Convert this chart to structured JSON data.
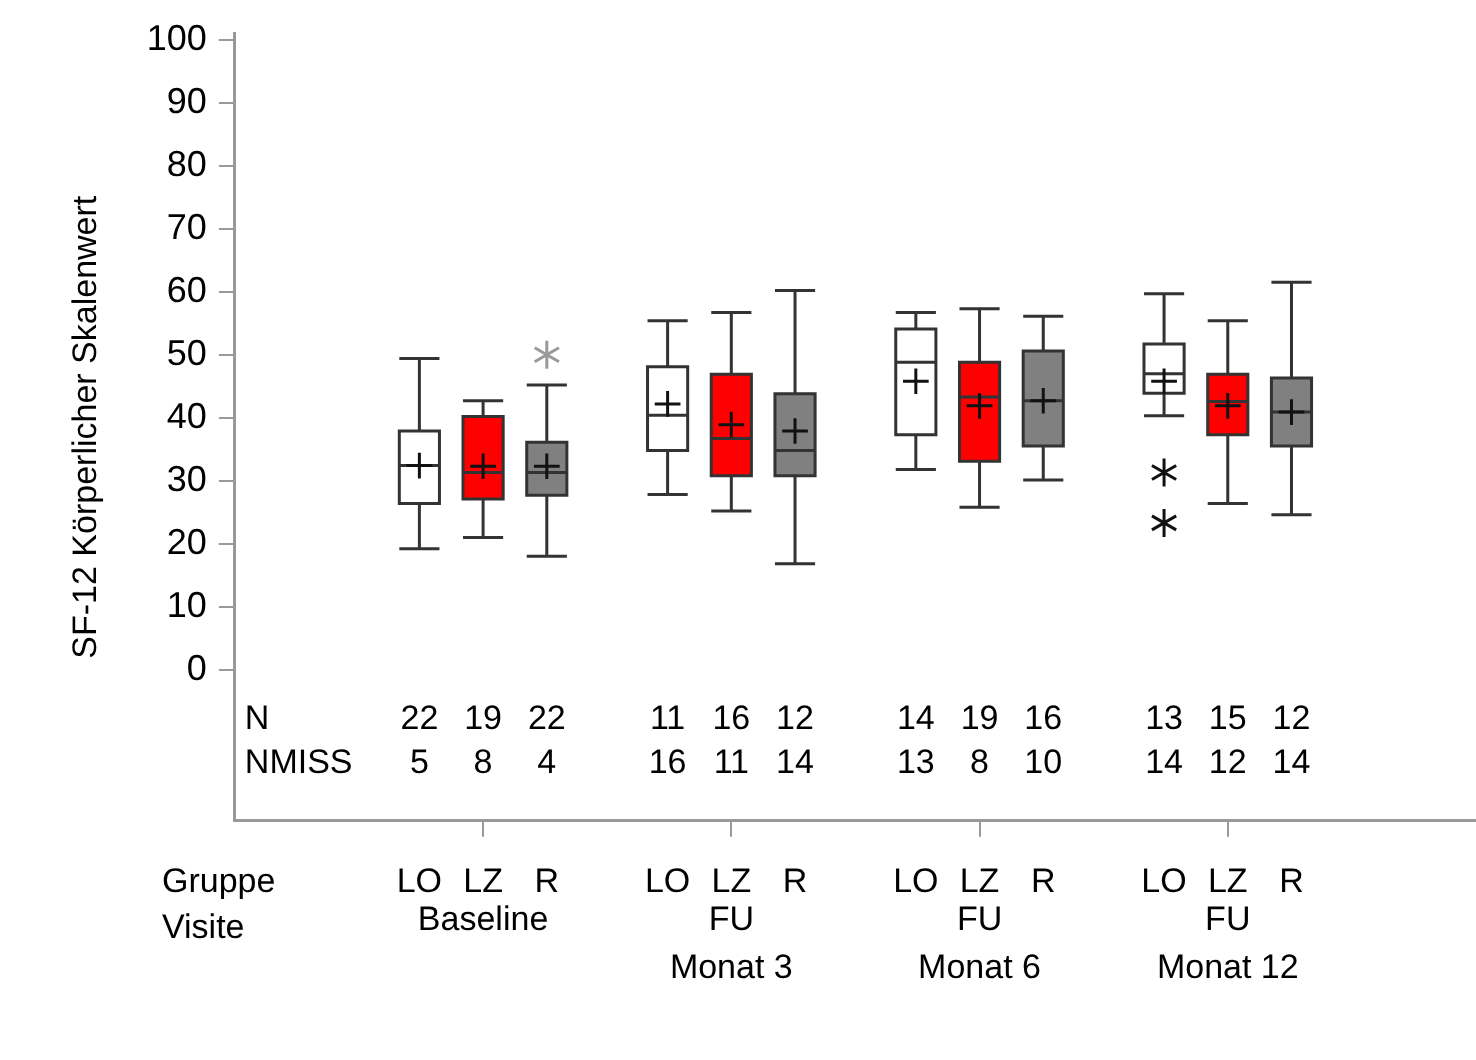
{
  "chart_data": {
    "type": "box",
    "ylabel": "SF-12 Körperlicher Skalenwert",
    "categories": [
      "Baseline",
      "FU Monat 3",
      "FU Monat 6",
      "FU Monat 12"
    ],
    "ylim": [
      -24,
      101
    ],
    "yticks": [
      0,
      10,
      20,
      30,
      40,
      50,
      60,
      70,
      80,
      90,
      100
    ],
    "grid": false,
    "legend": false,
    "marker": "cross",
    "series": [
      {
        "name": "LO",
        "color": "#ffffff",
        "boxes": [
          {
            "low": 19.2,
            "q1": 26.4,
            "median": 32.4,
            "q3": 37.9,
            "high": 49.4,
            "mean": 32.4
          },
          {
            "low": 27.8,
            "q1": 34.8,
            "median": 40.4,
            "q3": 48.1,
            "high": 55.4,
            "mean": 42.2
          },
          {
            "low": 31.8,
            "q1": 37.3,
            "median": 48.8,
            "q3": 54.1,
            "high": 56.7,
            "mean": 45.8
          },
          {
            "low": 40.3,
            "q1": 43.9,
            "median": 47,
            "q3": 51.7,
            "high": 59.7,
            "mean": 45.8,
            "outliers": [
              31.3,
              23.3
            ]
          }
        ]
      },
      {
        "name": "LZ",
        "color": "#ff0000",
        "boxes": [
          {
            "low": 21,
            "q1": 27.1,
            "median": 31.3,
            "q3": 40.2,
            "high": 42.7,
            "mean": 32.3
          },
          {
            "low": 25.2,
            "q1": 30.8,
            "median": 36.7,
            "q3": 46.9,
            "high": 56.7,
            "mean": 38.9
          },
          {
            "low": 25.8,
            "q1": 33.1,
            "median": 43.3,
            "q3": 48.8,
            "high": 57.3,
            "mean": 41.9
          },
          {
            "low": 26.4,
            "q1": 37.3,
            "median": 42.6,
            "q3": 46.9,
            "high": 55.4,
            "mean": 41.9
          }
        ]
      },
      {
        "name": "R",
        "color": "#808080",
        "boxes": [
          {
            "low": 18,
            "q1": 27.7,
            "median": 31.3,
            "q3": 36.1,
            "high": 45.2,
            "mean": 32.3,
            "outliers": [
              50
            ]
          },
          {
            "low": 16.8,
            "q1": 30.8,
            "median": 34.8,
            "q3": 43.8,
            "high": 60.2,
            "mean": 37.9
          },
          {
            "low": 30.1,
            "q1": 35.5,
            "median": 42.7,
            "q3": 50.6,
            "high": 56.1,
            "mean": 42.7
          },
          {
            "low": 24.6,
            "q1": 35.5,
            "median": 40.9,
            "q3": 46.3,
            "high": 61.5,
            "mean": 40.9
          }
        ]
      }
    ],
    "annotations": [
      "Gruppe",
      "Visite",
      "N",
      "NMISS",
      "22",
      "19",
      "22",
      "5",
      "8",
      "4",
      "11",
      "16",
      "12",
      "16",
      "11",
      "14",
      "14",
      "19",
      "16",
      "13",
      "8",
      "10",
      "13",
      "15",
      "12",
      "14",
      "12",
      "14"
    ]
  }
}
